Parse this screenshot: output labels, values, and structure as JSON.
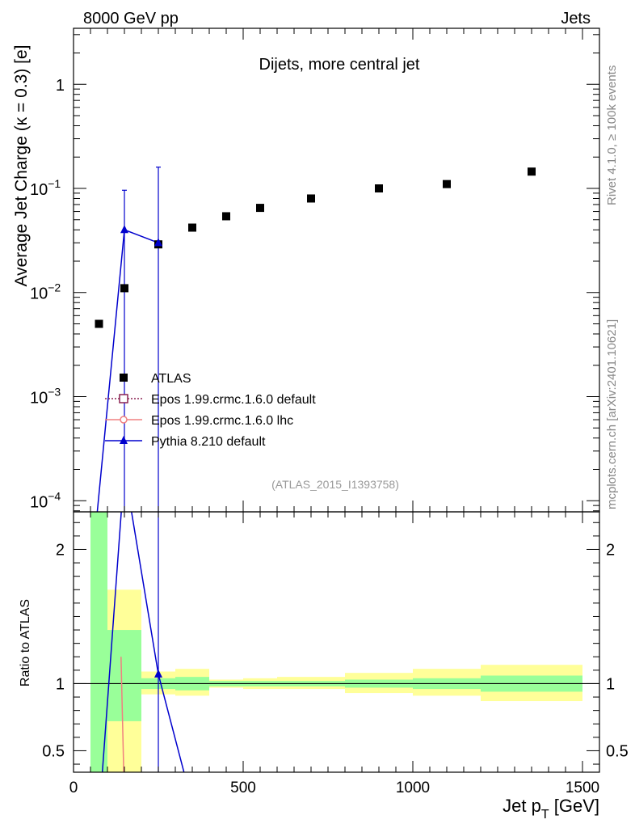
{
  "header": {
    "left": "8000 GeV pp",
    "right": "Jets"
  },
  "side_labels": {
    "rivet": "Rivet 4.1.0, ≥ 100k events",
    "mcplots": "mcplots.cern.ch [arXiv:2401.10621]"
  },
  "chart_data": {
    "type": "scatter",
    "title": "Dijets, more central jet",
    "analysis_id": "(ATLAS_2015_I1393758)",
    "xlabel": "Jet p_T [GeV]",
    "ylabel": "Average Jet Charge (κ = 0.3) [e]",
    "ratio_ylabel": "Ratio to ATLAS",
    "xlim": [
      0,
      1550
    ],
    "ylim": [
      7.82e-05,
      3.45
    ],
    "yscale": "log",
    "ratio_ylim": [
      0.34,
      2.28
    ],
    "x_ticks": [
      0,
      500,
      1000,
      1500
    ],
    "x_tick_labels": [
      "0",
      "500",
      "1000",
      "1500"
    ],
    "y_ticks": [
      0.0001,
      0.001,
      0.01,
      0.1,
      1
    ],
    "y_tick_labels": [
      {
        "base": "10",
        "exp": "−4"
      },
      {
        "base": "10",
        "exp": "−3"
      },
      {
        "base": "10",
        "exp": "−2"
      },
      {
        "base": "10",
        "exp": "−1"
      },
      {
        "base": "1",
        "exp": ""
      }
    ],
    "ratio_ticks": [
      0.5,
      1,
      2
    ],
    "ratio_tick_labels": [
      "0.5",
      "1",
      "2"
    ],
    "legend": [
      {
        "name": "ATLAS",
        "color": "#000000",
        "marker": "square"
      },
      {
        "name": "Epos 1.99.crmc.1.6.0 default",
        "color": "#8b2252",
        "marker": "open-square",
        "dashed": true
      },
      {
        "name": "Epos 1.99.crmc.1.6.0 lhc",
        "color": "#f08080",
        "marker": "open-circle"
      },
      {
        "name": "Pythia 8.210 default",
        "color": "#0000cd",
        "marker": "triangle"
      }
    ],
    "data": {
      "name": "ATLAS",
      "x": [
        75,
        150,
        250,
        350,
        450,
        550,
        700,
        900,
        1100,
        1350
      ],
      "x_low": [
        50,
        100,
        200,
        300,
        400,
        500,
        600,
        800,
        1000,
        1200
      ],
      "x_high": [
        100,
        200,
        300,
        400,
        500,
        600,
        800,
        1000,
        1200,
        1500
      ],
      "y": [
        0.005,
        0.011,
        0.029,
        0.042,
        0.054,
        0.065,
        0.08,
        0.1,
        0.11,
        0.145
      ]
    },
    "pythia": {
      "name": "Pythia 8.210 default",
      "x": [
        75,
        150,
        250
      ],
      "y": [
        9e-05,
        0.04,
        0.03
      ],
      "err_up": [
        9e-05,
        0.096,
        0.16
      ],
      "err_dn": [
        1e-05,
        1e-05,
        1e-05
      ]
    },
    "ratio_bands": {
      "x_low": [
        50,
        100,
        200,
        300,
        400,
        500,
        600,
        800,
        1000,
        1200
      ],
      "x_high": [
        100,
        200,
        300,
        400,
        500,
        600,
        800,
        1000,
        1200,
        1500
      ],
      "stat_lo": [
        0.3,
        0.72,
        0.96,
        0.95,
        0.98,
        0.98,
        0.98,
        0.97,
        0.96,
        0.94
      ],
      "stat_hi": [
        2.3,
        1.4,
        1.04,
        1.05,
        1.02,
        1.02,
        1.02,
        1.03,
        1.04,
        1.06
      ],
      "tot_lo": [
        0.3,
        0.3,
        0.92,
        0.91,
        0.97,
        0.96,
        0.96,
        0.93,
        0.91,
        0.87
      ],
      "tot_hi": [
        2.3,
        1.7,
        1.09,
        1.11,
        1.03,
        1.04,
        1.05,
        1.08,
        1.11,
        1.14
      ]
    },
    "ratio_lines": [
      {
        "name": "Pythia 8.210 default",
        "x": [
          85,
          150,
          250,
          340
        ],
        "y": [
          0.34,
          2.6,
          1.07,
          0.2
        ]
      },
      {
        "name": "Epos 1.99.crmc.1.6.0 lhc",
        "x": [
          140,
          148
        ],
        "y": [
          1.2,
          0.34
        ]
      }
    ]
  }
}
